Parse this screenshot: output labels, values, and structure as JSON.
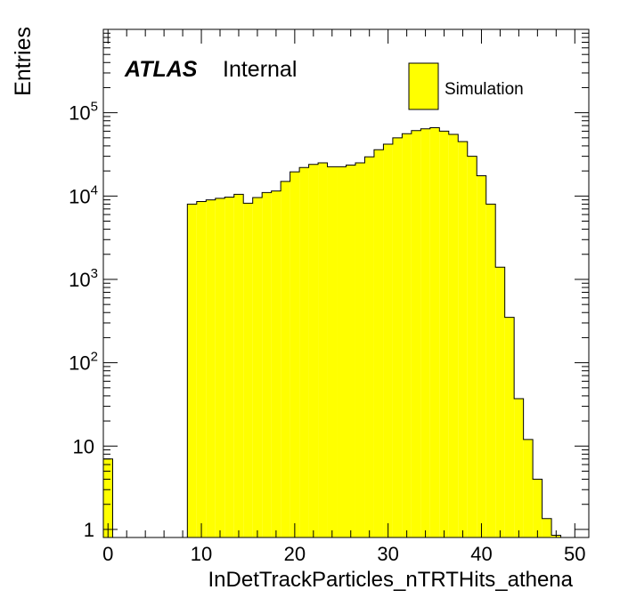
{
  "chart_data": {
    "type": "bar",
    "histogram": true,
    "xlabel": "InDetTrackParticles_nTRTHits_athena",
    "ylabel": "Entries",
    "xlim": [
      -0.5,
      51.5
    ],
    "ylim": [
      0.8,
      1000000
    ],
    "yscale": "log",
    "bin_width": 1,
    "x_ticks": [
      "0",
      "10",
      "20",
      "30",
      "40",
      "50"
    ],
    "y_ticks": [
      {
        "value": 1,
        "base": "1",
        "exp": ""
      },
      {
        "value": 10,
        "base": "10",
        "exp": ""
      },
      {
        "value": 100,
        "base": "10",
        "exp": "2"
      },
      {
        "value": 1000,
        "base": "10",
        "exp": "3"
      },
      {
        "value": 10000,
        "base": "10",
        "exp": "4"
      },
      {
        "value": 100000,
        "base": "10",
        "exp": "5"
      }
    ],
    "fill_color": "#ffff00",
    "line_color": "#000000",
    "legend": {
      "position": "top-right",
      "entries": [
        {
          "label": "Simulation",
          "color": "#ffff00"
        }
      ]
    },
    "series": [
      {
        "name": "Simulation",
        "bins": [
          [
            0,
            7
          ],
          [
            1,
            0
          ],
          [
            2,
            0
          ],
          [
            3,
            0
          ],
          [
            4,
            0
          ],
          [
            5,
            0
          ],
          [
            6,
            0
          ],
          [
            7,
            0
          ],
          [
            8,
            0
          ],
          [
            9,
            8000
          ],
          [
            10,
            8600
          ],
          [
            11,
            9000
          ],
          [
            12,
            9400
          ],
          [
            13,
            9700
          ],
          [
            14,
            10500
          ],
          [
            15,
            8200
          ],
          [
            16,
            9600
          ],
          [
            17,
            11000
          ],
          [
            18,
            11500
          ],
          [
            19,
            15000
          ],
          [
            20,
            19500
          ],
          [
            21,
            22000
          ],
          [
            22,
            24000
          ],
          [
            23,
            25000
          ],
          [
            24,
            22500
          ],
          [
            25,
            22500
          ],
          [
            26,
            23500
          ],
          [
            27,
            25000
          ],
          [
            28,
            29500
          ],
          [
            29,
            36000
          ],
          [
            30,
            42000
          ],
          [
            31,
            50000
          ],
          [
            32,
            56000
          ],
          [
            33,
            61000
          ],
          [
            34,
            64000
          ],
          [
            35,
            66000
          ],
          [
            36,
            60000
          ],
          [
            37,
            55000
          ],
          [
            38,
            45000
          ],
          [
            39,
            30000
          ],
          [
            40,
            17500
          ],
          [
            41,
            8000
          ],
          [
            42,
            1400
          ],
          [
            43,
            350
          ],
          [
            44,
            37
          ],
          [
            45,
            12
          ],
          [
            46,
            4
          ],
          [
            47,
            1.35
          ],
          [
            48,
            0.85
          ],
          [
            49,
            0
          ],
          [
            50,
            0
          ],
          [
            51,
            0
          ]
        ]
      }
    ],
    "annotations": {
      "atlas": "ATLAS",
      "status": "Internal"
    }
  }
}
